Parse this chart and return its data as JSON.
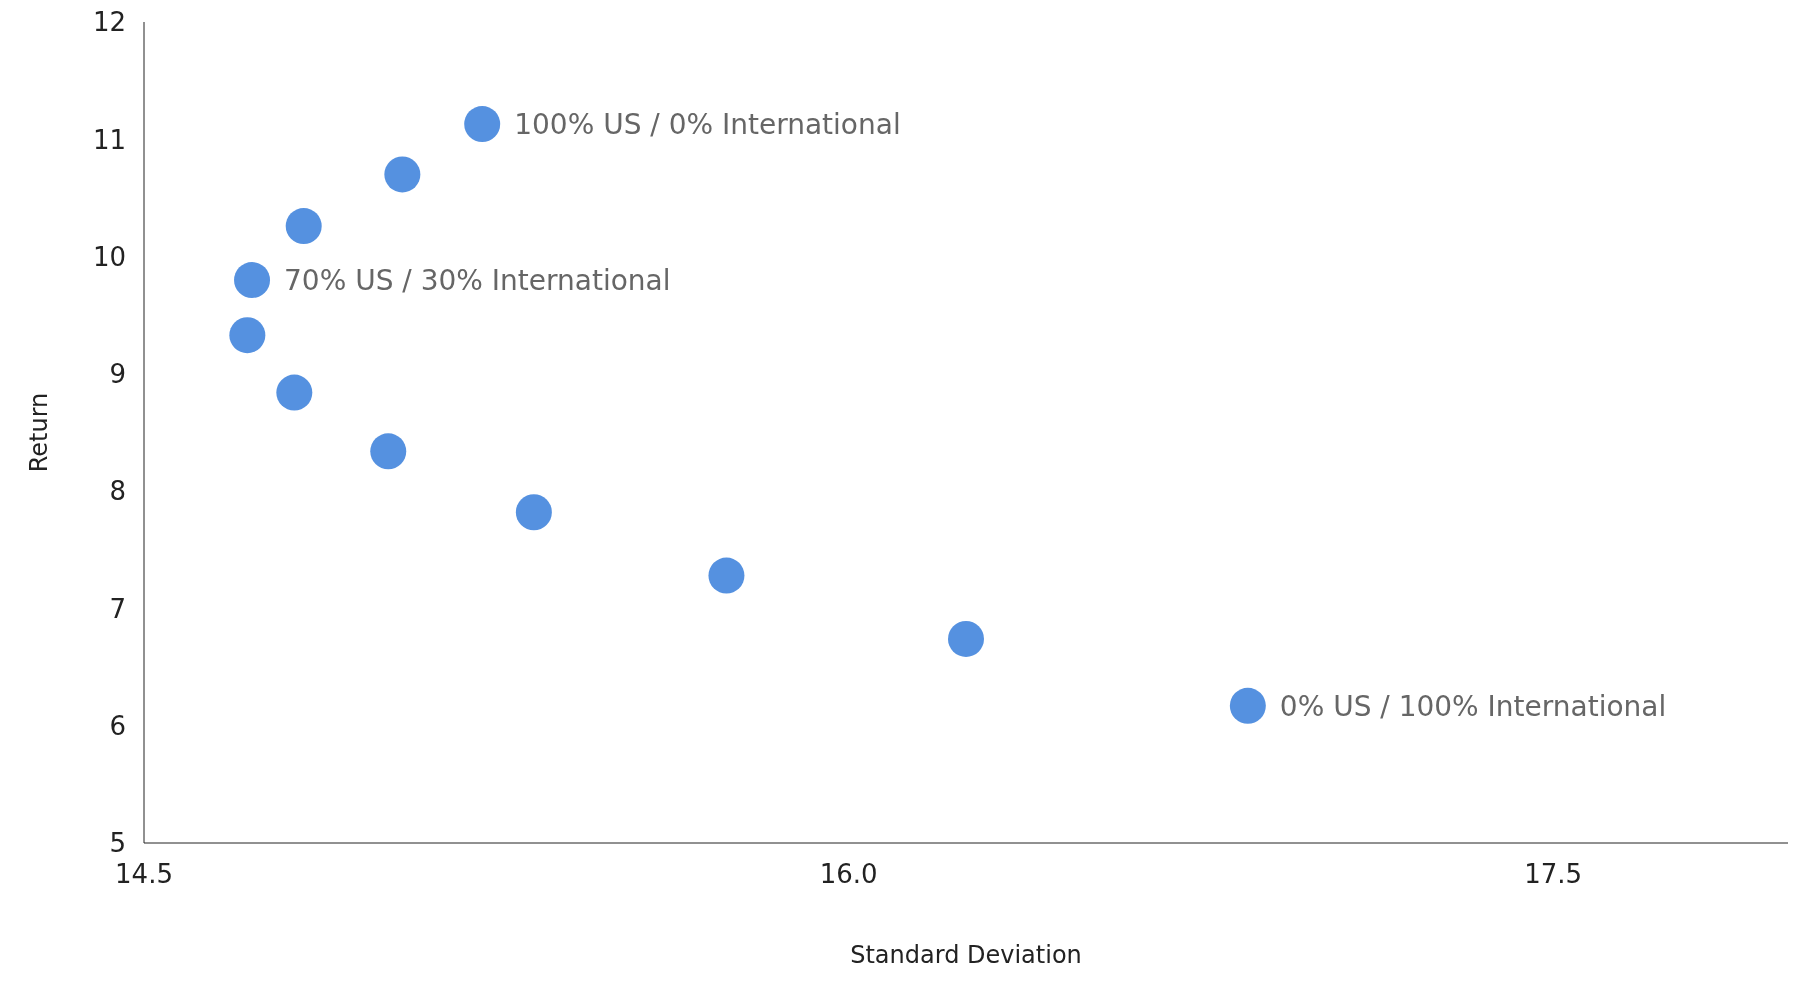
{
  "chart_data": {
    "type": "scatter",
    "xlabel": "Standard Deviation",
    "ylabel": "Return",
    "x": [
      15.22,
      15.05,
      14.84,
      14.73,
      14.72,
      14.82,
      15.02,
      15.33,
      15.74,
      16.25,
      16.85
    ],
    "series": [
      {
        "color": "#5591e0",
        "values": [
          11.13,
          10.7,
          10.26,
          9.8,
          9.33,
          8.84,
          8.34,
          7.82,
          7.28,
          6.74,
          6.17
        ]
      }
    ],
    "xlim": [
      14.5,
      18
    ],
    "xticks": [
      14.5,
      {
        "value": 16,
        "label": "16.0"
      },
      17.5
    ],
    "ylim": [
      5,
      12
    ],
    "yticks": [
      5,
      6,
      7,
      8,
      9,
      10,
      11,
      12
    ],
    "grid": false,
    "legend": false,
    "marker": "circle",
    "annotations": [
      {
        "text": "100% US / 0% International",
        "x": 15.22,
        "y": 11.13
      },
      {
        "text": "70% US / 30% International",
        "x": 14.73,
        "y": 9.8
      },
      {
        "text": "0% US / 100% International",
        "x": 16.85,
        "y": 6.17
      }
    ]
  }
}
